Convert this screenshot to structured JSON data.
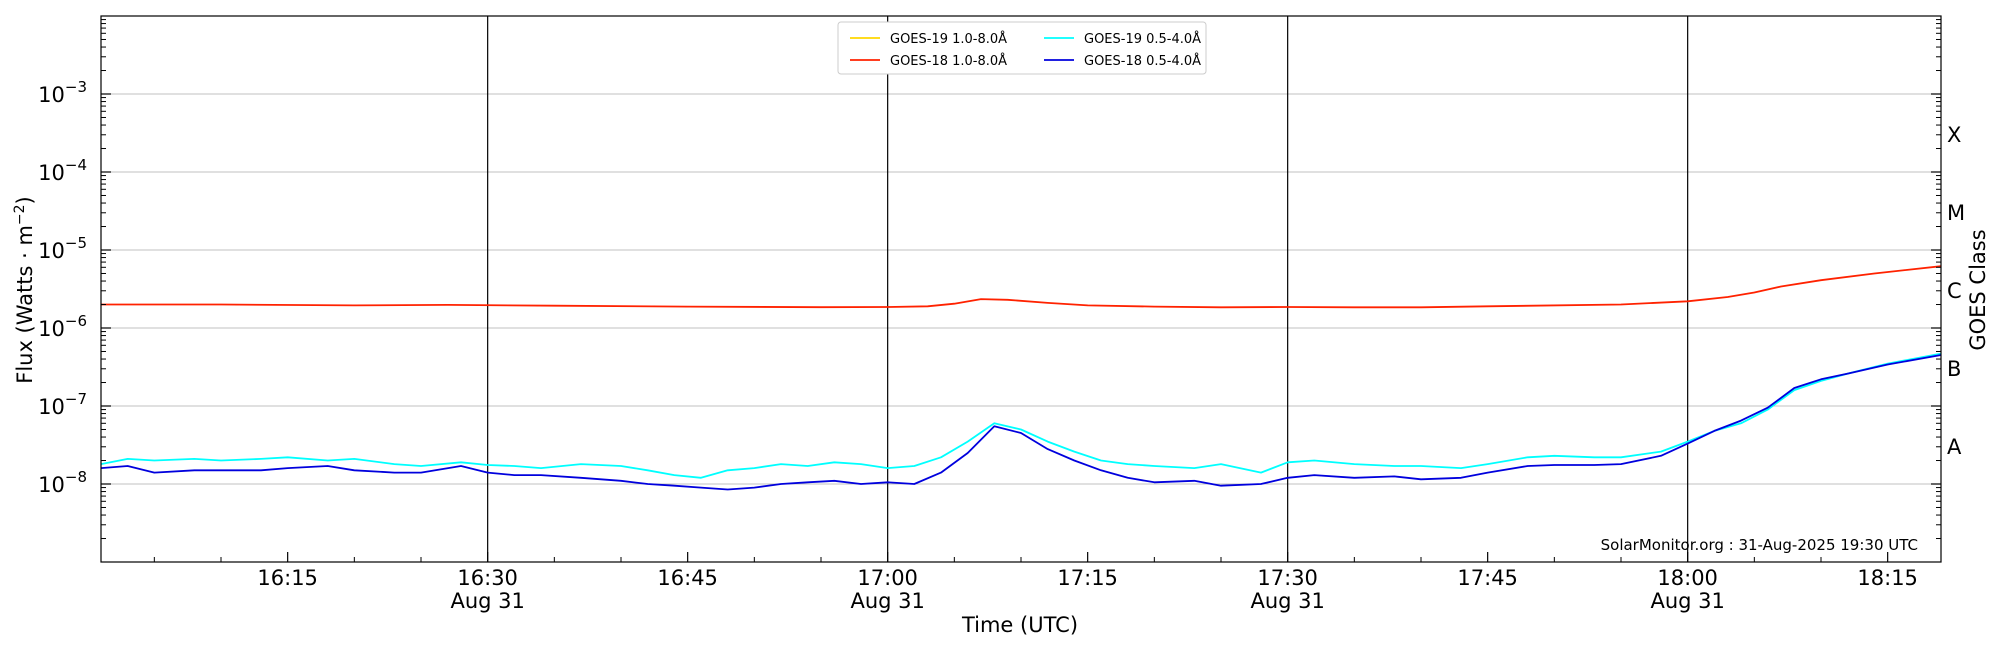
{
  "chart_data": {
    "type": "line",
    "xlabel": "Time (UTC)",
    "ylabel": "Flux (Watts · m",
    "ylabel_sup": "−2",
    "ylabel_close": ")",
    "y2label": "GOES Class",
    "yscale": "log",
    "ylim": [
      1e-09,
      0.01
    ],
    "xlim": [
      "16:01",
      "18:19"
    ],
    "grid": "horizontal",
    "legend_position": "top-center",
    "credit": "SolarMonitor.org : 31-Aug-2025 19:30 UTC",
    "y_ticks": [
      {
        "value": 1e-08,
        "base": "10",
        "exp": "−8"
      },
      {
        "value": 1e-07,
        "base": "10",
        "exp": "−7"
      },
      {
        "value": 1e-06,
        "base": "10",
        "exp": "−6"
      },
      {
        "value": 1e-05,
        "base": "10",
        "exp": "−5"
      },
      {
        "value": 0.0001,
        "base": "10",
        "exp": "−4"
      },
      {
        "value": 0.001,
        "base": "10",
        "exp": "−3"
      }
    ],
    "x_ticks": [
      {
        "time": "16:15",
        "label": "16:15",
        "date": ""
      },
      {
        "time": "16:30",
        "label": "16:30",
        "date": "Aug 31"
      },
      {
        "time": "16:45",
        "label": "16:45",
        "date": ""
      },
      {
        "time": "17:00",
        "label": "17:00",
        "date": "Aug 31"
      },
      {
        "time": "17:15",
        "label": "17:15",
        "date": ""
      },
      {
        "time": "17:30",
        "label": "17:30",
        "date": "Aug 31"
      },
      {
        "time": "17:45",
        "label": "17:45",
        "date": ""
      },
      {
        "time": "18:00",
        "label": "18:00",
        "date": "Aug 31"
      },
      {
        "time": "18:15",
        "label": "18:15",
        "date": ""
      }
    ],
    "vertical_lines": [
      "16:30",
      "17:00",
      "17:30",
      "18:00"
    ],
    "class_labels": [
      {
        "label": "A",
        "value": 3e-08
      },
      {
        "label": "B",
        "value": 3e-07
      },
      {
        "label": "C",
        "value": 3e-06
      },
      {
        "label": "M",
        "value": 3e-05
      },
      {
        "label": "X",
        "value": 0.0003
      }
    ],
    "series": [
      {
        "name": "GOES-19 1.0-8.0Å",
        "color": "#ffd700",
        "x": [],
        "y": []
      },
      {
        "name": "GOES-18 1.0-8.0Å",
        "color": "#ff2200",
        "x": [
          "16:01",
          "16:10",
          "16:20",
          "16:27",
          "16:35",
          "16:45",
          "16:55",
          "17:00",
          "17:03",
          "17:05",
          "17:07",
          "17:09",
          "17:12",
          "17:15",
          "17:20",
          "17:25",
          "17:30",
          "17:35",
          "17:40",
          "17:45",
          "17:55",
          "18:00",
          "18:03",
          "18:05",
          "18:07",
          "18:10",
          "18:14",
          "18:19"
        ],
        "y": [
          2e-06,
          2e-06,
          1.95e-06,
          1.98e-06,
          1.93e-06,
          1.88e-06,
          1.85e-06,
          1.86e-06,
          1.9e-06,
          2.05e-06,
          2.35e-06,
          2.3e-06,
          2.1e-06,
          1.95e-06,
          1.88e-06,
          1.84e-06,
          1.86e-06,
          1.84e-06,
          1.84e-06,
          1.9e-06,
          2e-06,
          2.2e-06,
          2.5e-06,
          2.85e-06,
          3.4e-06,
          4.1e-06,
          5e-06,
          6.2e-06
        ]
      },
      {
        "name": "GOES-19 0.5-4.0Å",
        "color": "#00ffff",
        "x": [
          "16:01",
          "16:03",
          "16:05",
          "16:08",
          "16:10",
          "16:13",
          "16:15",
          "16:18",
          "16:20",
          "16:23",
          "16:25",
          "16:28",
          "16:30",
          "16:32",
          "16:34",
          "16:37",
          "16:40",
          "16:42",
          "16:44",
          "16:46",
          "16:48",
          "16:50",
          "16:52",
          "16:54",
          "16:56",
          "16:58",
          "17:00",
          "17:02",
          "17:04",
          "17:06",
          "17:08",
          "17:10",
          "17:12",
          "17:14",
          "17:16",
          "17:18",
          "17:20",
          "17:23",
          "17:25",
          "17:28",
          "17:30",
          "17:32",
          "17:35",
          "17:38",
          "17:40",
          "17:43",
          "17:45",
          "17:48",
          "17:50",
          "17:53",
          "17:55",
          "17:58",
          "18:00",
          "18:02",
          "18:04",
          "18:06",
          "18:08",
          "18:10",
          "18:12",
          "18:15",
          "18:19"
        ],
        "y": [
          1.8e-08,
          2.1e-08,
          2e-08,
          2.1e-08,
          2e-08,
          2.1e-08,
          2.2e-08,
          2e-08,
          2.1e-08,
          1.8e-08,
          1.7e-08,
          1.9e-08,
          1.75e-08,
          1.7e-08,
          1.6e-08,
          1.8e-08,
          1.7e-08,
          1.5e-08,
          1.3e-08,
          1.2e-08,
          1.5e-08,
          1.6e-08,
          1.8e-08,
          1.7e-08,
          1.9e-08,
          1.8e-08,
          1.6e-08,
          1.7e-08,
          2.2e-08,
          3.5e-08,
          6e-08,
          5e-08,
          3.5e-08,
          2.6e-08,
          2e-08,
          1.8e-08,
          1.7e-08,
          1.6e-08,
          1.8e-08,
          1.4e-08,
          1.9e-08,
          2e-08,
          1.8e-08,
          1.7e-08,
          1.7e-08,
          1.6e-08,
          1.8e-08,
          2.2e-08,
          2.3e-08,
          2.2e-08,
          2.2e-08,
          2.6e-08,
          3.5e-08,
          4.8e-08,
          6e-08,
          9e-08,
          1.6e-07,
          2.1e-07,
          2.6e-07,
          3.5e-07,
          4.7e-07
        ]
      },
      {
        "name": "GOES-18 0.5-4.0Å",
        "color": "#0000dd",
        "x": [
          "16:01",
          "16:03",
          "16:05",
          "16:08",
          "16:10",
          "16:13",
          "16:15",
          "16:18",
          "16:20",
          "16:23",
          "16:25",
          "16:28",
          "16:30",
          "16:32",
          "16:34",
          "16:37",
          "16:40",
          "16:42",
          "16:44",
          "16:46",
          "16:48",
          "16:50",
          "16:52",
          "16:54",
          "16:56",
          "16:58",
          "17:00",
          "17:02",
          "17:04",
          "17:06",
          "17:08",
          "17:10",
          "17:12",
          "17:14",
          "17:16",
          "17:18",
          "17:20",
          "17:23",
          "17:25",
          "17:28",
          "17:30",
          "17:32",
          "17:35",
          "17:38",
          "17:40",
          "17:43",
          "17:45",
          "17:48",
          "17:50",
          "17:53",
          "17:55",
          "17:58",
          "18:00",
          "18:02",
          "18:04",
          "18:06",
          "18:08",
          "18:10",
          "18:12",
          "18:15",
          "18:19"
        ],
        "y": [
          1.6e-08,
          1.7e-08,
          1.4e-08,
          1.5e-08,
          1.5e-08,
          1.5e-08,
          1.6e-08,
          1.7e-08,
          1.5e-08,
          1.4e-08,
          1.4e-08,
          1.7e-08,
          1.4e-08,
          1.3e-08,
          1.3e-08,
          1.2e-08,
          1.1e-08,
          1e-08,
          9.5e-09,
          9e-09,
          8.5e-09,
          9e-09,
          1e-08,
          1.05e-08,
          1.1e-08,
          1e-08,
          1.05e-08,
          1e-08,
          1.4e-08,
          2.5e-08,
          5.5e-08,
          4.5e-08,
          2.8e-08,
          2e-08,
          1.5e-08,
          1.2e-08,
          1.05e-08,
          1.1e-08,
          9.5e-09,
          1e-08,
          1.2e-08,
          1.3e-08,
          1.2e-08,
          1.25e-08,
          1.15e-08,
          1.2e-08,
          1.4e-08,
          1.7e-08,
          1.75e-08,
          1.75e-08,
          1.8e-08,
          2.3e-08,
          3.3e-08,
          4.8e-08,
          6.5e-08,
          9.5e-08,
          1.7e-07,
          2.2e-07,
          2.6e-07,
          3.4e-07,
          4.5e-07
        ]
      }
    ]
  }
}
